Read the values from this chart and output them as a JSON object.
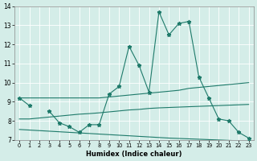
{
  "x": [
    0,
    1,
    2,
    3,
    4,
    5,
    6,
    7,
    8,
    9,
    10,
    11,
    12,
    13,
    14,
    15,
    16,
    17,
    18,
    19,
    20,
    21,
    22,
    23
  ],
  "y_main": [
    9.2,
    8.8,
    null,
    8.5,
    7.9,
    7.7,
    7.4,
    7.8,
    7.8,
    9.4,
    9.8,
    11.9,
    10.9,
    9.5,
    13.7,
    12.5,
    13.1,
    13.2,
    10.3,
    9.2,
    8.1,
    8.0,
    7.4,
    7.1
  ],
  "y_upper": [
    9.2,
    9.2,
    9.2,
    9.2,
    9.2,
    9.2,
    9.2,
    9.2,
    9.2,
    9.25,
    9.3,
    9.35,
    9.4,
    9.45,
    9.5,
    9.55,
    9.6,
    9.7,
    9.75,
    9.8,
    9.85,
    9.9,
    9.95,
    10.0
  ],
  "y_middle": [
    8.1,
    8.1,
    8.15,
    8.2,
    8.25,
    8.3,
    8.35,
    8.38,
    8.42,
    8.47,
    8.52,
    8.57,
    8.6,
    8.65,
    8.68,
    8.7,
    8.72,
    8.74,
    8.76,
    8.78,
    8.8,
    8.82,
    8.84,
    8.86
  ],
  "y_lower": [
    7.55,
    7.52,
    7.49,
    7.46,
    7.43,
    7.4,
    7.37,
    7.34,
    7.31,
    7.28,
    7.25,
    7.22,
    7.19,
    7.16,
    7.13,
    7.1,
    7.08,
    7.06,
    7.04,
    7.02,
    7.0,
    6.98,
    6.96,
    6.95
  ],
  "bg_color": "#d4ede8",
  "line_color": "#1e7a6a",
  "ylim": [
    7,
    14
  ],
  "xlim": [
    -0.5,
    23.5
  ],
  "yticks": [
    7,
    8,
    9,
    10,
    11,
    12,
    13,
    14
  ],
  "xticks": [
    0,
    1,
    2,
    3,
    4,
    5,
    6,
    7,
    8,
    9,
    10,
    11,
    12,
    13,
    14,
    15,
    16,
    17,
    18,
    19,
    20,
    21,
    22,
    23
  ],
  "xlabel": "Humidex (Indice chaleur)"
}
